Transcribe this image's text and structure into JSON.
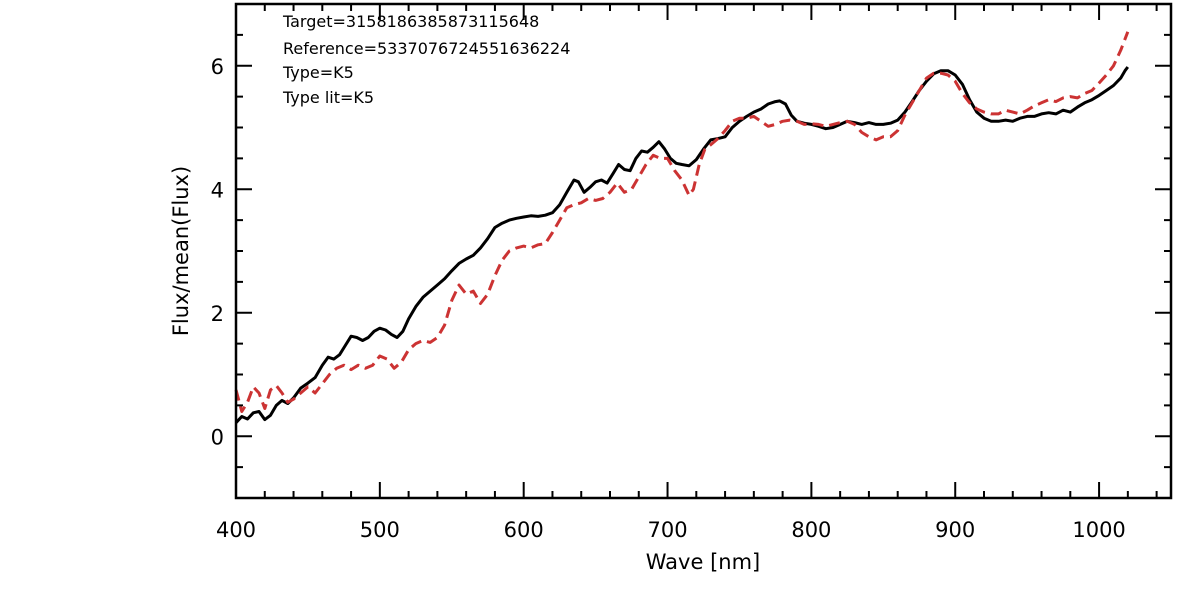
{
  "chart_data": {
    "type": "line",
    "xlabel": "Wave [nm]",
    "ylabel": "Flux/mean(Flux)",
    "xlim": [
      400,
      1050
    ],
    "ylim": [
      -1,
      7
    ],
    "x_major_ticks": [
      400,
      500,
      600,
      700,
      800,
      900,
      1000
    ],
    "x_minor_step": 20,
    "y_major_ticks": [
      0,
      2,
      4,
      6
    ],
    "y_minor_step": 0.5,
    "grid": false,
    "annotations": [
      "Target=3158186385873115648",
      "Reference=5337076724551636224",
      "Type=K5",
      "Type lit=K5"
    ],
    "series": [
      {
        "color": "#000000",
        "dash": "solid",
        "points": [
          [
            400,
            0.22
          ],
          [
            404,
            0.32
          ],
          [
            408,
            0.28
          ],
          [
            412,
            0.38
          ],
          [
            416,
            0.4
          ],
          [
            420,
            0.27
          ],
          [
            424,
            0.34
          ],
          [
            428,
            0.5
          ],
          [
            432,
            0.58
          ],
          [
            436,
            0.53
          ],
          [
            440,
            0.62
          ],
          [
            445,
            0.78
          ],
          [
            450,
            0.86
          ],
          [
            455,
            0.95
          ],
          [
            460,
            1.15
          ],
          [
            464,
            1.28
          ],
          [
            468,
            1.25
          ],
          [
            472,
            1.32
          ],
          [
            476,
            1.47
          ],
          [
            480,
            1.62
          ],
          [
            484,
            1.6
          ],
          [
            488,
            1.55
          ],
          [
            492,
            1.6
          ],
          [
            496,
            1.7
          ],
          [
            500,
            1.75
          ],
          [
            504,
            1.72
          ],
          [
            508,
            1.65
          ],
          [
            512,
            1.6
          ],
          [
            516,
            1.7
          ],
          [
            520,
            1.9
          ],
          [
            525,
            2.1
          ],
          [
            530,
            2.25
          ],
          [
            535,
            2.35
          ],
          [
            540,
            2.45
          ],
          [
            545,
            2.55
          ],
          [
            550,
            2.68
          ],
          [
            555,
            2.8
          ],
          [
            560,
            2.87
          ],
          [
            565,
            2.93
          ],
          [
            570,
            3.05
          ],
          [
            575,
            3.2
          ],
          [
            580,
            3.38
          ],
          [
            585,
            3.45
          ],
          [
            590,
            3.5
          ],
          [
            595,
            3.53
          ],
          [
            600,
            3.55
          ],
          [
            605,
            3.57
          ],
          [
            610,
            3.56
          ],
          [
            615,
            3.58
          ],
          [
            620,
            3.62
          ],
          [
            625,
            3.75
          ],
          [
            630,
            3.95
          ],
          [
            635,
            4.15
          ],
          [
            638,
            4.12
          ],
          [
            642,
            3.95
          ],
          [
            646,
            4.03
          ],
          [
            650,
            4.12
          ],
          [
            654,
            4.15
          ],
          [
            658,
            4.1
          ],
          [
            662,
            4.25
          ],
          [
            666,
            4.4
          ],
          [
            670,
            4.32
          ],
          [
            674,
            4.3
          ],
          [
            678,
            4.5
          ],
          [
            682,
            4.62
          ],
          [
            686,
            4.6
          ],
          [
            690,
            4.68
          ],
          [
            694,
            4.77
          ],
          [
            698,
            4.65
          ],
          [
            702,
            4.5
          ],
          [
            706,
            4.42
          ],
          [
            710,
            4.4
          ],
          [
            715,
            4.38
          ],
          [
            720,
            4.48
          ],
          [
            725,
            4.65
          ],
          [
            730,
            4.8
          ],
          [
            735,
            4.82
          ],
          [
            740,
            4.85
          ],
          [
            745,
            5.0
          ],
          [
            750,
            5.1
          ],
          [
            755,
            5.18
          ],
          [
            760,
            5.25
          ],
          [
            765,
            5.3
          ],
          [
            770,
            5.38
          ],
          [
            775,
            5.42
          ],
          [
            778,
            5.43
          ],
          [
            782,
            5.38
          ],
          [
            786,
            5.2
          ],
          [
            790,
            5.1
          ],
          [
            795,
            5.07
          ],
          [
            800,
            5.05
          ],
          [
            805,
            5.02
          ],
          [
            810,
            4.98
          ],
          [
            815,
            5.0
          ],
          [
            820,
            5.05
          ],
          [
            825,
            5.1
          ],
          [
            830,
            5.08
          ],
          [
            835,
            5.05
          ],
          [
            840,
            5.08
          ],
          [
            845,
            5.05
          ],
          [
            850,
            5.05
          ],
          [
            855,
            5.07
          ],
          [
            860,
            5.12
          ],
          [
            865,
            5.25
          ],
          [
            870,
            5.42
          ],
          [
            875,
            5.6
          ],
          [
            880,
            5.75
          ],
          [
            885,
            5.87
          ],
          [
            890,
            5.92
          ],
          [
            895,
            5.92
          ],
          [
            900,
            5.85
          ],
          [
            905,
            5.7
          ],
          [
            910,
            5.45
          ],
          [
            915,
            5.25
          ],
          [
            920,
            5.15
          ],
          [
            925,
            5.1
          ],
          [
            930,
            5.1
          ],
          [
            935,
            5.12
          ],
          [
            940,
            5.1
          ],
          [
            945,
            5.15
          ],
          [
            950,
            5.18
          ],
          [
            955,
            5.18
          ],
          [
            960,
            5.22
          ],
          [
            965,
            5.24
          ],
          [
            970,
            5.22
          ],
          [
            975,
            5.28
          ],
          [
            980,
            5.25
          ],
          [
            985,
            5.33
          ],
          [
            990,
            5.4
          ],
          [
            995,
            5.45
          ],
          [
            1000,
            5.52
          ],
          [
            1005,
            5.6
          ],
          [
            1010,
            5.68
          ],
          [
            1015,
            5.8
          ],
          [
            1018,
            5.92
          ],
          [
            1020,
            5.98
          ]
        ]
      },
      {
        "color": "#cc3333",
        "dash": "dashed",
        "points": [
          [
            400,
            0.75
          ],
          [
            404,
            0.4
          ],
          [
            408,
            0.55
          ],
          [
            412,
            0.8
          ],
          [
            416,
            0.7
          ],
          [
            420,
            0.45
          ],
          [
            424,
            0.75
          ],
          [
            428,
            0.82
          ],
          [
            432,
            0.7
          ],
          [
            436,
            0.55
          ],
          [
            440,
            0.6
          ],
          [
            445,
            0.7
          ],
          [
            450,
            0.8
          ],
          [
            455,
            0.7
          ],
          [
            460,
            0.85
          ],
          [
            465,
            1.0
          ],
          [
            470,
            1.1
          ],
          [
            475,
            1.15
          ],
          [
            480,
            1.08
          ],
          [
            485,
            1.15
          ],
          [
            490,
            1.1
          ],
          [
            495,
            1.15
          ],
          [
            500,
            1.3
          ],
          [
            505,
            1.25
          ],
          [
            510,
            1.1
          ],
          [
            515,
            1.2
          ],
          [
            520,
            1.4
          ],
          [
            525,
            1.5
          ],
          [
            530,
            1.55
          ],
          [
            535,
            1.52
          ],
          [
            540,
            1.6
          ],
          [
            545,
            1.8
          ],
          [
            550,
            2.2
          ],
          [
            555,
            2.45
          ],
          [
            560,
            2.3
          ],
          [
            565,
            2.35
          ],
          [
            570,
            2.15
          ],
          [
            575,
            2.3
          ],
          [
            580,
            2.6
          ],
          [
            585,
            2.85
          ],
          [
            590,
            3.0
          ],
          [
            595,
            3.05
          ],
          [
            600,
            3.08
          ],
          [
            605,
            3.05
          ],
          [
            610,
            3.1
          ],
          [
            615,
            3.12
          ],
          [
            620,
            3.3
          ],
          [
            625,
            3.5
          ],
          [
            630,
            3.7
          ],
          [
            635,
            3.75
          ],
          [
            640,
            3.78
          ],
          [
            645,
            3.85
          ],
          [
            650,
            3.82
          ],
          [
            655,
            3.85
          ],
          [
            660,
            3.95
          ],
          [
            665,
            4.1
          ],
          [
            670,
            3.95
          ],
          [
            675,
            4.0
          ],
          [
            680,
            4.2
          ],
          [
            685,
            4.4
          ],
          [
            690,
            4.55
          ],
          [
            695,
            4.5
          ],
          [
            700,
            4.5
          ],
          [
            705,
            4.3
          ],
          [
            710,
            4.15
          ],
          [
            715,
            3.9
          ],
          [
            718,
            4.0
          ],
          [
            722,
            4.4
          ],
          [
            726,
            4.65
          ],
          [
            730,
            4.72
          ],
          [
            735,
            4.82
          ],
          [
            740,
            4.95
          ],
          [
            745,
            5.1
          ],
          [
            750,
            5.15
          ],
          [
            755,
            5.15
          ],
          [
            760,
            5.18
          ],
          [
            765,
            5.1
          ],
          [
            770,
            5.02
          ],
          [
            775,
            5.05
          ],
          [
            780,
            5.1
          ],
          [
            785,
            5.12
          ],
          [
            790,
            5.1
          ],
          [
            795,
            5.05
          ],
          [
            800,
            5.06
          ],
          [
            805,
            5.05
          ],
          [
            810,
            5.02
          ],
          [
            815,
            5.05
          ],
          [
            820,
            5.08
          ],
          [
            825,
            5.1
          ],
          [
            830,
            5.05
          ],
          [
            835,
            4.92
          ],
          [
            840,
            4.85
          ],
          [
            845,
            4.8
          ],
          [
            850,
            4.85
          ],
          [
            855,
            4.85
          ],
          [
            860,
            4.95
          ],
          [
            865,
            5.2
          ],
          [
            870,
            5.4
          ],
          [
            875,
            5.6
          ],
          [
            880,
            5.8
          ],
          [
            885,
            5.88
          ],
          [
            890,
            5.88
          ],
          [
            895,
            5.85
          ],
          [
            900,
            5.75
          ],
          [
            905,
            5.55
          ],
          [
            910,
            5.4
          ],
          [
            915,
            5.3
          ],
          [
            920,
            5.25
          ],
          [
            925,
            5.22
          ],
          [
            930,
            5.22
          ],
          [
            935,
            5.28
          ],
          [
            940,
            5.25
          ],
          [
            945,
            5.22
          ],
          [
            950,
            5.28
          ],
          [
            955,
            5.35
          ],
          [
            960,
            5.4
          ],
          [
            965,
            5.45
          ],
          [
            970,
            5.42
          ],
          [
            975,
            5.48
          ],
          [
            980,
            5.5
          ],
          [
            985,
            5.48
          ],
          [
            990,
            5.55
          ],
          [
            995,
            5.6
          ],
          [
            1000,
            5.72
          ],
          [
            1005,
            5.85
          ],
          [
            1010,
            6.0
          ],
          [
            1015,
            6.25
          ],
          [
            1020,
            6.55
          ]
        ]
      }
    ]
  }
}
